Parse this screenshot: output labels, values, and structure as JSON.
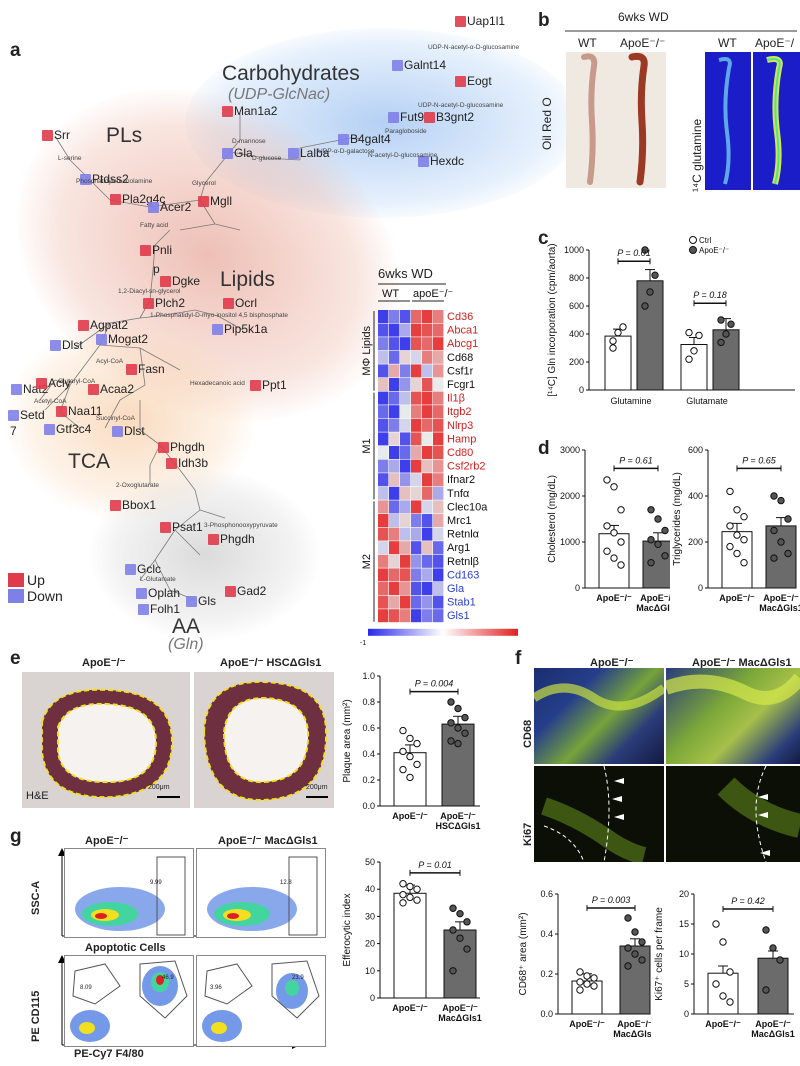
{
  "panel_labels": [
    "a",
    "b",
    "c",
    "d",
    "e",
    "f",
    "g"
  ],
  "network": {
    "groups": [
      {
        "name": "Carbohydrates",
        "label": "Carbohydrates",
        "sub": "(UDP-GlcNac)"
      },
      {
        "name": "PLs",
        "label": "PLs"
      },
      {
        "name": "Lipids",
        "label": "Lipids"
      },
      {
        "name": "TCA",
        "label": "TCA"
      },
      {
        "name": "AA",
        "label": "AA",
        "sub": "(Gln)"
      }
    ],
    "genes": [
      {
        "label": "Uap1l1",
        "dir": "up"
      },
      {
        "label": "Galnt14",
        "dir": "down"
      },
      {
        "label": "Eogt",
        "dir": "up"
      },
      {
        "label": "Fut9",
        "dir": "down"
      },
      {
        "label": "B3gnt2",
        "dir": "up"
      },
      {
        "label": "Man1a2",
        "dir": "up"
      },
      {
        "label": "B4galt4",
        "dir": "down"
      },
      {
        "label": "Gla",
        "dir": "down"
      },
      {
        "label": "Lalba",
        "dir": "down"
      },
      {
        "label": "Hexdc",
        "dir": "down"
      },
      {
        "label": "Srr",
        "dir": "up"
      },
      {
        "label": "Ptdss2",
        "dir": "down"
      },
      {
        "label": "Pla2g4c",
        "dir": "up"
      },
      {
        "label": "Acer2",
        "dir": "down"
      },
      {
        "label": "Mgll",
        "dir": "up"
      },
      {
        "label": "Pnli",
        "dir": "up"
      },
      {
        "label": "p",
        "dir": "up"
      },
      {
        "label": "Dgke",
        "dir": "up"
      },
      {
        "label": "Plch2",
        "dir": "up"
      },
      {
        "label": "Ocrl",
        "dir": "up"
      },
      {
        "label": "Pip5k1a",
        "dir": "down"
      },
      {
        "label": "Mogat2",
        "dir": "down"
      },
      {
        "label": "Agpat2",
        "dir": "up"
      },
      {
        "label": "Dlst",
        "dir": "down"
      },
      {
        "label": "Fasn",
        "dir": "up"
      },
      {
        "label": "Nat2",
        "dir": "down"
      },
      {
        "label": "Acly",
        "dir": "up"
      },
      {
        "label": "Acaa2",
        "dir": "up"
      },
      {
        "label": "Setd",
        "dir": "down"
      },
      {
        "label": "7",
        "dir": "down"
      },
      {
        "label": "Naa11",
        "dir": "up"
      },
      {
        "label": "Gtf3c4",
        "dir": "down"
      },
      {
        "label": "Ppt1",
        "dir": "up"
      },
      {
        "label": "Dlst",
        "dir": "down"
      },
      {
        "label": "Phgdh",
        "dir": "up"
      },
      {
        "label": "Idh3b",
        "dir": "up"
      },
      {
        "label": "Bbox1",
        "dir": "up"
      },
      {
        "label": "Psat1",
        "dir": "up"
      },
      {
        "label": "Phgdh",
        "dir": "up"
      },
      {
        "label": "Gclc",
        "dir": "down"
      },
      {
        "label": "Oplah",
        "dir": "down"
      },
      {
        "label": "Folh1",
        "dir": "down"
      },
      {
        "label": "Gls",
        "dir": "down"
      },
      {
        "label": "Gad2",
        "dir": "up"
      }
    ],
    "metabolites": [
      "UDP-N-acetyl-α-D-glucosamine",
      "UDP-N-acetyl-D-glucosamine",
      "Paragloboside",
      "D-mannose",
      "D-glucose",
      "UDP-α-D-galactose",
      "N-acetyl-D-glucosamine",
      "L-serine",
      "Phosphatidylethanolamine",
      "Glycerol",
      "Fatty acid",
      "1,2-Diacyl-sn-glycerol",
      "1-Phosphatidyl-D-myo-inositol 4,5 bisphosphate",
      "Acyl-CoA",
      "Glutaryl-CoA",
      "Acetyl-CoA",
      "Hexadecanoic acid",
      "Succinyl-CoA",
      "2-Oxoglutarate",
      "3-Phosphonooxypyruvate",
      "L-Glutamate"
    ],
    "legend": {
      "up": "Up",
      "down": "Down"
    }
  },
  "heatmap": {
    "title": "6wks WD",
    "col_groups": [
      "WT",
      "apoE⁻/⁻"
    ],
    "row_groups": [
      "MΦ Lipids",
      "M1",
      "M2"
    ],
    "genes": [
      {
        "name": "Cd36",
        "color": "red"
      },
      {
        "name": "Abca1",
        "color": "red"
      },
      {
        "name": "Abcg1",
        "color": "red"
      },
      {
        "name": "Cd68",
        "color": "black"
      },
      {
        "name": "Csf1r",
        "color": "black"
      },
      {
        "name": "Fcgr1",
        "color": "black"
      },
      {
        "name": "Il1β",
        "color": "red"
      },
      {
        "name": "Itgb2",
        "color": "red"
      },
      {
        "name": "Nlrp3",
        "color": "red"
      },
      {
        "name": "Hamp",
        "color": "red"
      },
      {
        "name": "Cd80",
        "color": "red"
      },
      {
        "name": "Csf2rb2",
        "color": "red"
      },
      {
        "name": "Ifnar2",
        "color": "black"
      },
      {
        "name": "Tnfα",
        "color": "black"
      },
      {
        "name": "Clec10a",
        "color": "black"
      },
      {
        "name": "Mrc1",
        "color": "black"
      },
      {
        "name": "Retnlα",
        "color": "black"
      },
      {
        "name": "Arg1",
        "color": "black"
      },
      {
        "name": "Retnlβ",
        "color": "black"
      },
      {
        "name": "Cd163",
        "color": "blue"
      },
      {
        "name": "Gla",
        "color": "blue"
      },
      {
        "name": "Stab1",
        "color": "blue"
      },
      {
        "name": "Gls1",
        "color": "blue"
      }
    ],
    "values": [
      [
        -0.9,
        -0.6,
        -0.8,
        0.7,
        0.9,
        0.6
      ],
      [
        -0.8,
        -0.9,
        -0.4,
        0.9,
        0.8,
        0.7
      ],
      [
        -0.6,
        -0.8,
        -0.9,
        0.8,
        0.7,
        0.9
      ],
      [
        -0.3,
        -0.7,
        0.2,
        -0.2,
        0.6,
        0.4
      ],
      [
        -0.8,
        0.4,
        -0.6,
        0.9,
        -0.3,
        0.5
      ],
      [
        0.3,
        -0.9,
        -0.5,
        0.2,
        0.8,
        -0.1
      ],
      [
        -0.9,
        -0.7,
        -0.3,
        0.8,
        0.9,
        0.6
      ],
      [
        -0.7,
        -0.9,
        0.1,
        0.6,
        0.9,
        0.7
      ],
      [
        -0.8,
        -0.6,
        -0.2,
        0.9,
        0.7,
        0.8
      ],
      [
        -0.9,
        0.2,
        -0.8,
        0.8,
        -0.1,
        0.9
      ],
      [
        0.1,
        -0.9,
        -0.7,
        0.4,
        0.9,
        0.8
      ],
      [
        -0.6,
        -0.4,
        -0.9,
        0.9,
        0.3,
        0.5
      ],
      [
        -0.8,
        0.3,
        -0.5,
        -0.2,
        0.9,
        0.6
      ],
      [
        -0.3,
        -0.9,
        0.3,
        0.2,
        0.7,
        -0.4
      ],
      [
        0.5,
        -0.7,
        -0.4,
        0.9,
        -0.2,
        0.3
      ],
      [
        0.9,
        -0.3,
        0.2,
        -0.6,
        -0.8,
        0.4
      ],
      [
        0.8,
        0.6,
        -0.3,
        -0.4,
        -0.9,
        -0.2
      ],
      [
        -0.2,
        0.9,
        0.4,
        -0.8,
        0.3,
        -0.7
      ],
      [
        0.6,
        0.2,
        0.9,
        -0.5,
        -0.7,
        -0.8
      ],
      [
        0.9,
        0.7,
        0.8,
        -0.6,
        -0.4,
        -0.9
      ],
      [
        0.7,
        0.9,
        0.5,
        -0.8,
        -0.9,
        -0.3
      ],
      [
        0.8,
        0.4,
        0.9,
        -0.7,
        -0.5,
        -0.8
      ],
      [
        0.9,
        0.8,
        0.6,
        -0.9,
        -0.6,
        -0.7
      ]
    ],
    "scale": {
      "min": "-1",
      "max": "1"
    }
  },
  "panel_b": {
    "title": "6wks WD",
    "wt": "WT",
    "ko": "ApoE⁻/⁻",
    "stain1": "Oil Red O",
    "stain2": "¹⁴C glutamine"
  },
  "chart_data": [
    {
      "type": "bar",
      "panel": "c",
      "ylabel": "[¹⁴C] Gln incorporation (cpm/aorta)",
      "ylim": [
        0,
        1000
      ],
      "yticks": [
        "0",
        "200",
        "400",
        "600",
        "800",
        "1000"
      ],
      "categories": [
        "Glutamine",
        "Glutamate"
      ],
      "series": [
        {
          "name": "Ctrl",
          "values": [
            385,
            325
          ]
        },
        {
          "name": "ApoE⁻/⁻",
          "values": [
            780,
            430
          ]
        }
      ],
      "pvalues": [
        "P = 0.01",
        "P = 0.18"
      ],
      "points": [
        [
          [
            300,
            410,
            450,
            350
          ],
          [
            600,
            700,
            820,
            1000
          ]
        ],
        [
          [
            220,
            280,
            390,
            410
          ],
          [
            340,
            400,
            470,
            500
          ]
        ]
      ]
    },
    {
      "type": "bar",
      "panel": "d1",
      "ylabel": "Cholesterol (mg/dL)",
      "ylim": [
        0,
        3000
      ],
      "yticks": [
        "0",
        "1000",
        "2000",
        "3000"
      ],
      "categories": [
        "ApoE⁻/⁻",
        "ApoE⁻/⁻ MacΔGls1"
      ],
      "values": [
        1180,
        1020
      ],
      "pvalue": "P = 0.61",
      "points": [
        [
          2350,
          2200,
          1700,
          1350,
          1200,
          1000,
          800,
          650,
          500
        ],
        [
          1700,
          1500,
          1250,
          1050,
          950,
          700,
          550
        ]
      ]
    },
    {
      "type": "bar",
      "panel": "d2",
      "ylabel": "Triglycerides (mg/dL)",
      "ylim": [
        0,
        600
      ],
      "yticks": [
        "0",
        "200",
        "400",
        "600"
      ],
      "categories": [
        "ApoE⁻/⁻",
        "ApoE⁻/⁻ MacΔGls1"
      ],
      "values": [
        245,
        270
      ],
      "pvalue": "P = 0.65",
      "points": [
        [
          420,
          340,
          310,
          270,
          230,
          210,
          180,
          150,
          110
        ],
        [
          400,
          380,
          300,
          250,
          200,
          150,
          130
        ]
      ]
    },
    {
      "type": "bar",
      "panel": "e",
      "ylabel": "Plaque area (mm²)",
      "ylim": [
        0.0,
        1.0
      ],
      "yticks": [
        "0.0",
        "0.2",
        "0.4",
        "0.6",
        "0.8",
        "1.0"
      ],
      "categories": [
        "ApoE⁻/⁻",
        "ApoE⁻/⁻ HSCΔGls1"
      ],
      "values": [
        0.41,
        0.63
      ],
      "pvalue": "P = 0.004",
      "points": [
        [
          0.58,
          0.52,
          0.48,
          0.42,
          0.38,
          0.32,
          0.28,
          0.22
        ],
        [
          0.8,
          0.75,
          0.68,
          0.64,
          0.6,
          0.56,
          0.5,
          0.48
        ]
      ]
    },
    {
      "type": "bar",
      "panel": "g",
      "ylabel": "Efferocytic index",
      "ylim": [
        0,
        50
      ],
      "yticks": [
        "0",
        "10",
        "20",
        "30",
        "40",
        "50"
      ],
      "categories": [
        "ApoE⁻/⁻",
        "ApoE⁻/⁻ MacΔGls1"
      ],
      "values": [
        38.5,
        25
      ],
      "pvalue": "P = 0.01",
      "points": [
        [
          42,
          41,
          40,
          38,
          37,
          36,
          35
        ],
        [
          33,
          31,
          28,
          25,
          22,
          18,
          10
        ]
      ]
    },
    {
      "type": "bar",
      "panel": "f1",
      "ylabel": "CD68⁺ area (mm²)",
      "ylim": [
        0,
        0.6
      ],
      "yticks": [
        "0.0",
        "0.2",
        "0.4",
        "0.6"
      ],
      "categories": [
        "ApoE⁻/⁻",
        "ApoE⁻/⁻ MacΔGls1"
      ],
      "values": [
        0.165,
        0.34
      ],
      "pvalue": "P = 0.003",
      "points": [
        [
          0.21,
          0.19,
          0.18,
          0.16,
          0.15,
          0.14,
          0.12
        ],
        [
          0.48,
          0.41,
          0.36,
          0.33,
          0.3,
          0.27,
          0.24
        ]
      ]
    },
    {
      "type": "bar",
      "panel": "f2",
      "ylabel": "Ki67⁺ cells per frame",
      "ylim": [
        0,
        20
      ],
      "yticks": [
        "0",
        "5",
        "10",
        "15",
        "20"
      ],
      "categories": [
        "ApoE⁻/⁻",
        "ApoE⁻/⁻ MacΔGls1"
      ],
      "values": [
        6.8,
        9.3
      ],
      "pvalue": "P = 0.42",
      "points": [
        [
          15,
          12,
          7,
          5,
          3,
          2
        ],
        [
          14,
          11,
          9,
          4
        ]
      ]
    }
  ],
  "panel_e_images": {
    "left": "ApoE⁻/⁻",
    "right": "ApoE⁻/⁻ HSCΔGls1",
    "stain": "H&E",
    "scale": "200μm"
  },
  "panel_f_images": {
    "left": "ApoE⁻/⁻",
    "right": "ApoE⁻/⁻ MacΔGls1",
    "row1": "CD68",
    "row2": "Ki67"
  },
  "panel_g_images": {
    "left": "ApoE⁻/⁻",
    "right": "ApoE⁻/⁻ MacΔGls1",
    "y1": "SSC-A",
    "x1": "Apoptotic Cells",
    "y2": "PE CD115",
    "x2": "PE-Cy7 F4/80",
    "gate_vals": [
      "9.99",
      "12.8",
      "8.09",
      "46.9",
      "3.96",
      "23.9"
    ]
  }
}
